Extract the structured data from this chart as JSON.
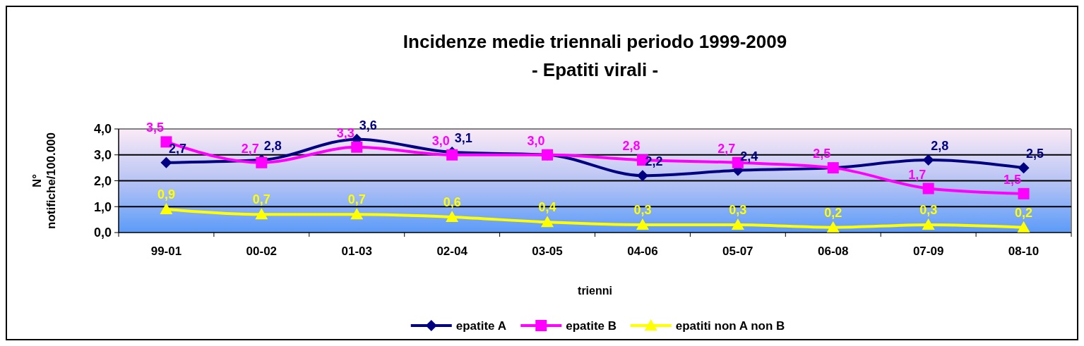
{
  "chart_data": {
    "type": "line",
    "title": "Incidenze medie triennali periodo 1999-2009",
    "subtitle": "- Epatiti virali -",
    "xlabel": "trienni",
    "ylabel": "N°\nnotifiche/100.000",
    "categories": [
      "99-01",
      "00-02",
      "01-03",
      "02-04",
      "03-05",
      "04-06",
      "05-07",
      "06-08",
      "07-09",
      "08-10"
    ],
    "series": [
      {
        "name": "epatite A",
        "color": "#000080",
        "marker": "diamond",
        "values": [
          2.7,
          2.8,
          3.6,
          3.1,
          3.0,
          2.2,
          2.4,
          2.5,
          2.8,
          2.5
        ],
        "value_labels": [
          "2,7",
          "2,8",
          "3,6",
          "3,1",
          null,
          "2,2",
          "2,4",
          null,
          "2,8",
          "2,5"
        ]
      },
      {
        "name": "epatite B",
        "color": "#ff00ff",
        "marker": "square",
        "values": [
          3.5,
          2.7,
          3.3,
          3.0,
          3.0,
          2.8,
          2.7,
          2.5,
          1.7,
          1.5
        ],
        "value_labels": [
          "3,5",
          "2,7",
          "3,3",
          "3,0",
          "3,0",
          "2,8",
          "2,7",
          "2,5",
          "1,7",
          "1,5"
        ]
      },
      {
        "name": "epatiti non A non B",
        "color": "#ffff00",
        "marker": "triangle",
        "values": [
          0.9,
          0.7,
          0.7,
          0.6,
          0.4,
          0.3,
          0.3,
          0.2,
          0.3,
          0.2
        ],
        "value_labels": [
          "0,9",
          "0,7",
          "0,7",
          "0,6",
          "0,4",
          "0,3",
          "0,3",
          "0,2",
          "0,3",
          "0,2"
        ]
      }
    ],
    "ylim": [
      0,
      4
    ],
    "yticks": [
      {
        "value": 0,
        "label": "0,0"
      },
      {
        "value": 1,
        "label": "1,0"
      },
      {
        "value": 2,
        "label": "2,0"
      },
      {
        "value": 3,
        "label": "3,0"
      },
      {
        "value": 4,
        "label": "4,0"
      }
    ],
    "grid": "y",
    "legend": "bottom",
    "line_style": "solid"
  }
}
